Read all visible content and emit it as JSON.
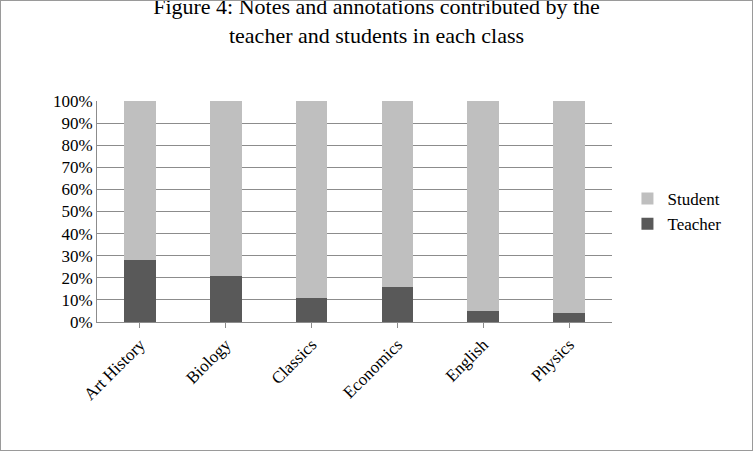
{
  "chart_data": {
    "type": "bar",
    "title": "Figure 4: Notes and annotations contributed by the teacher and students in each class",
    "categories": [
      "Art History",
      "Biology",
      "Classics",
      "Economics",
      "English",
      "Physics"
    ],
    "series": [
      {
        "name": "Teacher",
        "color": "#595959",
        "values": [
          28,
          21,
          11,
          16,
          5,
          4
        ]
      },
      {
        "name": "Student",
        "color": "#bfbfbf",
        "values": [
          72,
          79,
          89,
          84,
          95,
          96
        ]
      }
    ],
    "stacked": true,
    "ylim": [
      0,
      100
    ],
    "yticks": [
      {
        "value": 0,
        "label": "0%"
      },
      {
        "value": 10,
        "label": "10%"
      },
      {
        "value": 20,
        "label": "20%"
      },
      {
        "value": 30,
        "label": "30%"
      },
      {
        "value": 40,
        "label": "40%"
      },
      {
        "value": 50,
        "label": "50%"
      },
      {
        "value": 60,
        "label": "60%"
      },
      {
        "value": 70,
        "label": "70%"
      },
      {
        "value": 80,
        "label": "80%"
      },
      {
        "value": 90,
        "label": "90%"
      },
      {
        "value": 100,
        "label": "100%"
      }
    ],
    "grid": true,
    "legend": "right"
  }
}
